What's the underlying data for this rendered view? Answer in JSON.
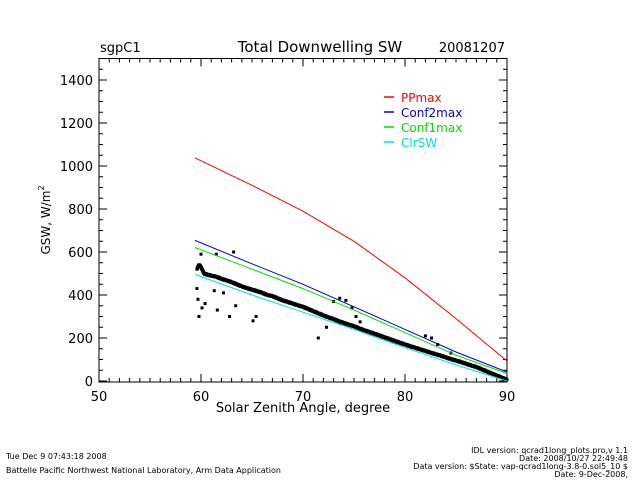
{
  "chart_data": {
    "type": "line",
    "title": "Total Downwelling SW",
    "site": "sgpC1",
    "date": "20081207",
    "xlabel": "Solar Zenith Angle, degree",
    "ylabel": "GSW, W/m",
    "ylabel_sup": "2",
    "xlim": [
      50,
      90
    ],
    "ylim": [
      0,
      1500
    ],
    "xticks": [
      50,
      60,
      70,
      80,
      90
    ],
    "xtick_labels": [
      "50",
      "60",
      "70",
      "80",
      "90"
    ],
    "yticks": [
      0,
      200,
      400,
      600,
      800,
      1000,
      1200,
      1400
    ],
    "ytick_labels": [
      "0",
      "200",
      "400",
      "600",
      "800",
      "1000",
      "1200",
      "1400"
    ],
    "legend_position": "top-right",
    "series": [
      {
        "name": "PPmax",
        "color": "#ff0000",
        "x": [
          59.4,
          65,
          70,
          75,
          80,
          85,
          90
        ],
        "y": [
          1038,
          910,
          790,
          650,
          480,
          290,
          93
        ]
      },
      {
        "name": "Conf2max",
        "color": "#0000cc",
        "x": [
          59.4,
          65,
          70,
          75,
          80,
          85,
          90
        ],
        "y": [
          654,
          545,
          450,
          345,
          240,
          135,
          42
        ]
      },
      {
        "name": "Conf1max",
        "color": "#00dd00",
        "x": [
          59.4,
          65,
          70,
          75,
          80,
          85,
          90
        ],
        "y": [
          621,
          520,
          430,
          330,
          225,
          120,
          35
        ]
      },
      {
        "name": "ClrSW",
        "color": "#00e0e0",
        "x": [
          59.4,
          65,
          70,
          75,
          80,
          85,
          90
        ],
        "y": [
          496,
          400,
          320,
          240,
          155,
          75,
          0
        ]
      }
    ],
    "observations": {
      "name": "GSW",
      "color": "#000000",
      "x": [
        59.6,
        59.8,
        60.0,
        60.3,
        60.6,
        61.0,
        61.5,
        62.0,
        62.5,
        63.0,
        63.5,
        64.0,
        64.5,
        65.0,
        65.5,
        66.0,
        66.5,
        67.0,
        67.5,
        68.0,
        68.5,
        69.0,
        69.5,
        70.0,
        70.5,
        71.0,
        71.5,
        72.0,
        72.5,
        73.0,
        73.5,
        74.0,
        74.5,
        75.0,
        75.5,
        76.0,
        76.5,
        77.0,
        77.5,
        78.0,
        78.5,
        79.0,
        79.5,
        80.0,
        80.5,
        81.0,
        81.5,
        82.0,
        82.5,
        83.0,
        83.5,
        84.0,
        84.5,
        85.0,
        85.5,
        86.0,
        86.5,
        87.0,
        87.5,
        88.0,
        88.5,
        89.0,
        89.5,
        90.0,
        59.6,
        59.7,
        59.8,
        60.1,
        60.4,
        61.3,
        61.6,
        62.2,
        62.8,
        63.4,
        65.1,
        65.4,
        71.5,
        72.3,
        73.0,
        73.6,
        74.2,
        74.8,
        75.2,
        75.6,
        60.0,
        61.5,
        63.2,
        82.0,
        82.6,
        83.2,
        84.5
      ],
      "y": [
        520,
        540,
        530,
        500,
        495,
        490,
        485,
        475,
        468,
        460,
        450,
        440,
        432,
        425,
        418,
        410,
        400,
        395,
        385,
        375,
        368,
        360,
        352,
        345,
        335,
        325,
        315,
        305,
        296,
        288,
        278,
        270,
        262,
        255,
        245,
        236,
        228,
        220,
        212,
        203,
        195,
        186,
        178,
        170,
        162,
        155,
        147,
        140,
        132,
        125,
        118,
        110,
        102,
        95,
        88,
        80,
        72,
        65,
        55,
        45,
        35,
        25,
        15,
        6,
        430,
        380,
        300,
        340,
        360,
        420,
        330,
        410,
        300,
        350,
        280,
        300,
        200,
        250,
        370,
        385,
        375,
        340,
        300,
        275,
        590,
        590,
        600,
        210,
        200,
        170,
        130
      ]
    }
  },
  "footer": {
    "timestamp": "Tue Dec  9 07:43:18 2008",
    "lab": "Battelle Pacific Northwest National Laboratory, Arm Data Application",
    "idl_version": "IDL version: qcrad1long_plots.pro,v 1.1",
    "idl_date": "Date: 2008/10/27 22:49:48",
    "data_version": "Data version: $State: vap-qcrad1long-3.8-0.sol5_10 $",
    "data_date": "Date: 9-Dec-2008,"
  }
}
